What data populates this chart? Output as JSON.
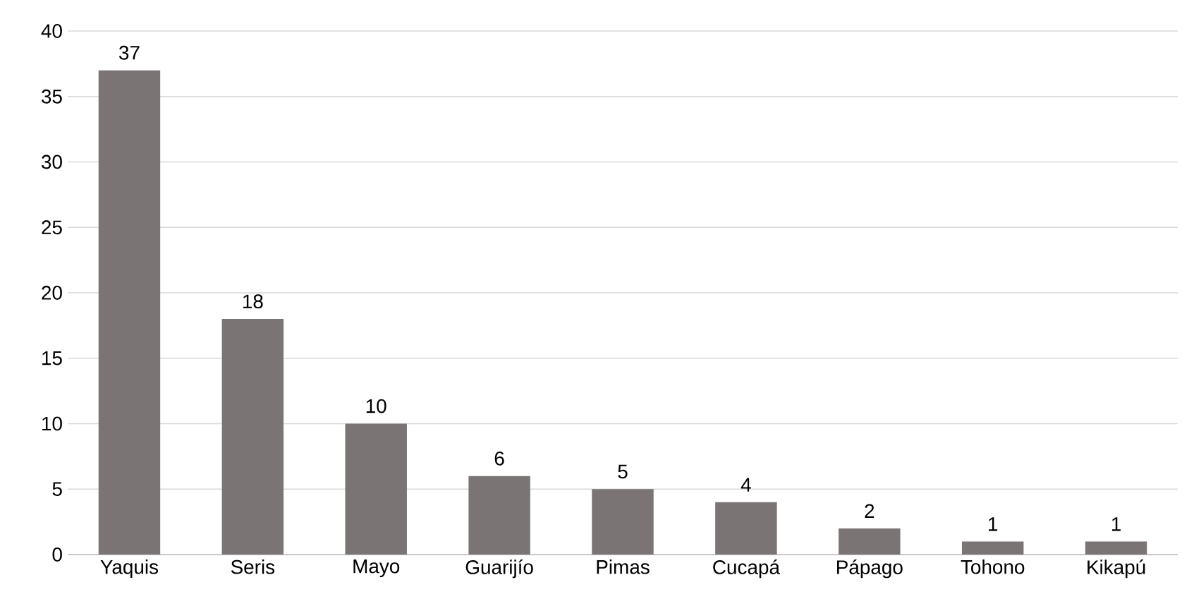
{
  "chart_data": {
    "type": "bar",
    "categories": [
      "Yaquis",
      "Seris",
      "Mayo",
      "Guarijío",
      "Pimas",
      "Cucapá",
      "Pápago",
      "Tohono",
      "Kikapú"
    ],
    "values": [
      37,
      18,
      10,
      6,
      5,
      4,
      2,
      1,
      1
    ],
    "color": "#7a7574",
    "ylim": [
      0,
      40
    ],
    "yticks": [
      0,
      5,
      10,
      15,
      20,
      25,
      30,
      35,
      40
    ],
    "grid": "y",
    "data_labels": true
  }
}
